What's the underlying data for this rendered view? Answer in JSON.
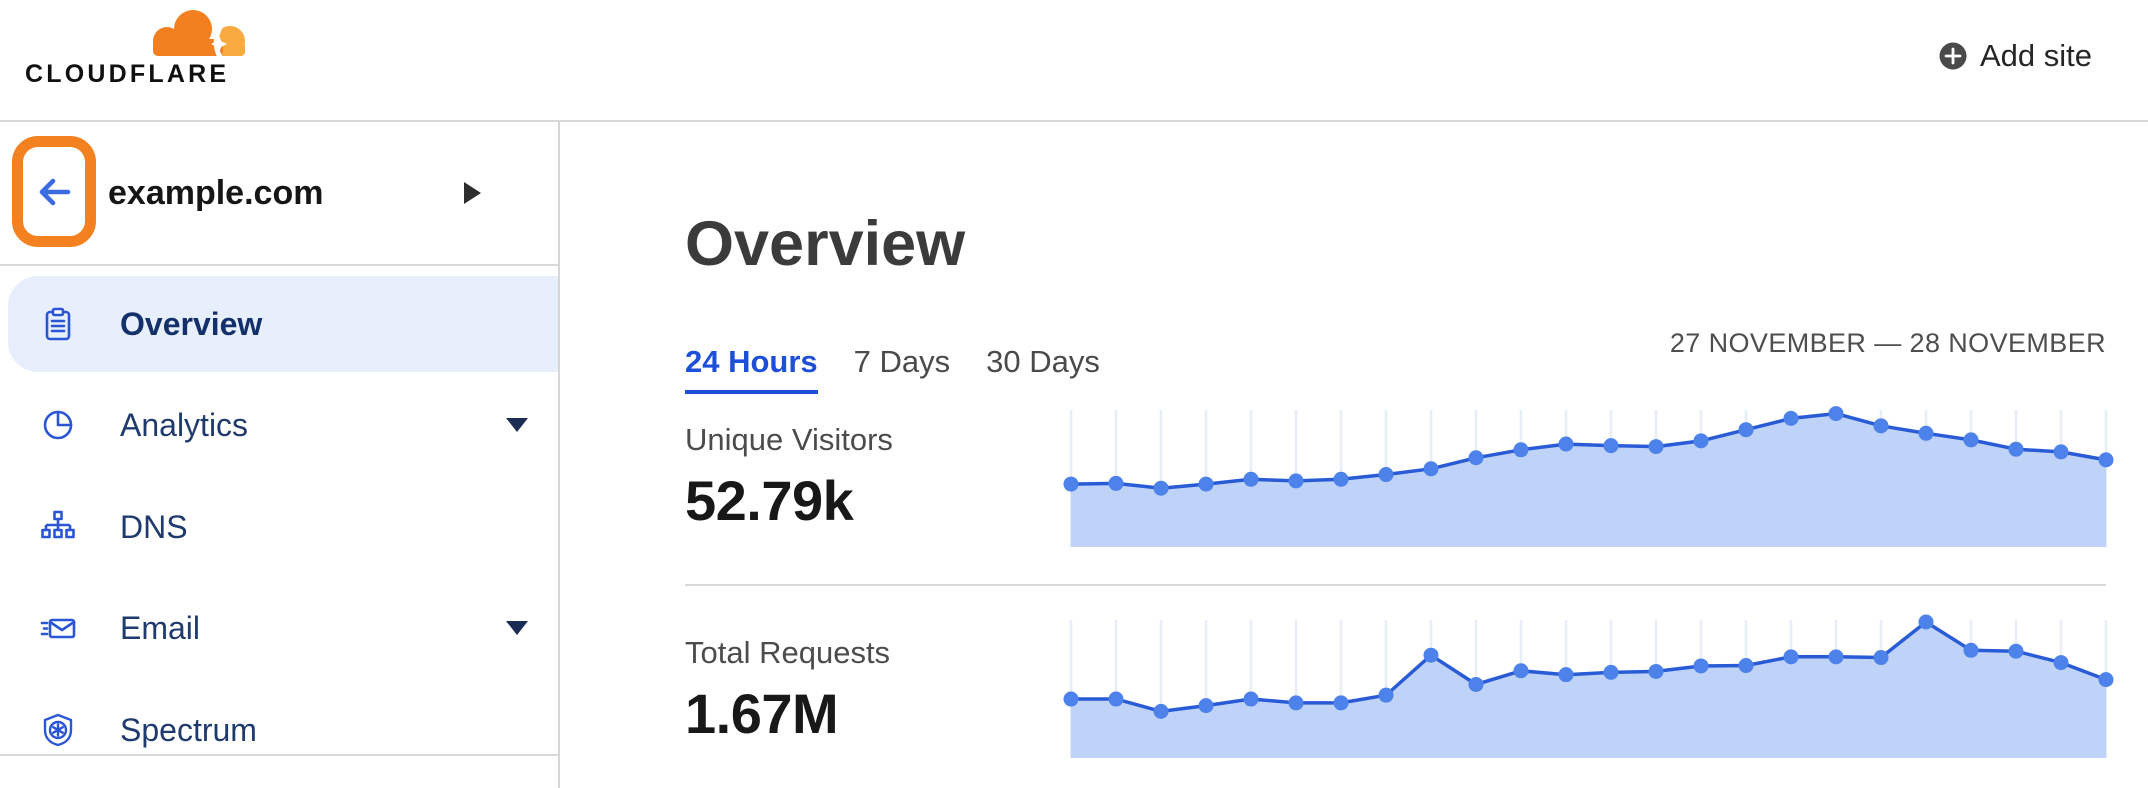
{
  "header": {
    "logo_text": "CLOUDFLARE",
    "add_site_label": "Add site"
  },
  "sidebar": {
    "site_name": "example.com",
    "items": [
      {
        "label": "Overview",
        "icon": "clipboard-icon",
        "selected": true,
        "has_caret": false
      },
      {
        "label": "Analytics",
        "icon": "pie-chart-icon",
        "selected": false,
        "has_caret": true
      },
      {
        "label": "DNS",
        "icon": "dns-tree-icon",
        "selected": false,
        "has_caret": false
      },
      {
        "label": "Email",
        "icon": "email-icon",
        "selected": false,
        "has_caret": true
      },
      {
        "label": "Spectrum",
        "icon": "shield-icon",
        "selected": false,
        "has_caret": false
      }
    ]
  },
  "main": {
    "title": "Overview",
    "tabs": [
      {
        "label": "24 Hours",
        "active": true
      },
      {
        "label": "7 Days",
        "active": false
      },
      {
        "label": "30 Days",
        "active": false
      }
    ],
    "date_range": "27 NOVEMBER — 28 NOVEMBER",
    "stats": [
      {
        "label": "Unique Visitors",
        "value": "52.79k"
      },
      {
        "label": "Total Requests",
        "value": "1.67M"
      }
    ]
  },
  "colors": {
    "brand_orange": "#f48120",
    "brand_orange_light": "#f9ab41",
    "accent_blue": "#1d4fd8",
    "nav_text_navy": "#1f3a6d",
    "nav_icon_blue": "#2a56d6",
    "selected_row_bg": "#e8effc",
    "divider_gray": "#d8d8d8",
    "chart_line": "#2a5bd7",
    "chart_fill": "#bed3f7",
    "chart_dot": "#4d82ea",
    "chart_grid": "#e8eef8"
  },
  "chart_data": [
    {
      "type": "area",
      "title": "Unique Visitors",
      "total_label": "52.79k",
      "x_unit": "hour",
      "x_range_label": "27 NOVEMBER — 28 NOVEMBER",
      "points": 24,
      "values_relative": [
        0.458,
        0.463,
        0.427,
        0.458,
        0.494,
        0.482,
        0.494,
        0.53,
        0.573,
        0.656,
        0.716,
        0.759,
        0.747,
        0.74,
        0.783,
        0.867,
        0.952,
        0.988,
        0.896,
        0.84,
        0.79,
        0.72,
        0.7,
        0.64
      ],
      "ylim": [
        0,
        1
      ],
      "grid": "vertical-per-point",
      "legend": "none",
      "colors": {
        "line": "#2a5bd7",
        "fill": "#bed3f7",
        "dot": "#4d82ea",
        "grid": "#e8eef8"
      }
    },
    {
      "type": "area",
      "title": "Total Requests",
      "total_label": "1.67M",
      "x_unit": "hour",
      "x_range_label": "27 NOVEMBER — 28 NOVEMBER",
      "points": 24,
      "values_relative": [
        0.425,
        0.425,
        0.333,
        0.376,
        0.425,
        0.396,
        0.396,
        0.454,
        0.752,
        0.534,
        0.636,
        0.607,
        0.624,
        0.631,
        0.672,
        0.675,
        0.74,
        0.74,
        0.735,
        1.0,
        0.789,
        0.782,
        0.697,
        0.57
      ],
      "ylim": [
        0,
        1
      ],
      "grid": "vertical-per-point",
      "legend": "none",
      "colors": {
        "line": "#2a5bd7",
        "fill": "#bed3f7",
        "dot": "#4d82ea",
        "grid": "#e8eef8"
      }
    }
  ]
}
